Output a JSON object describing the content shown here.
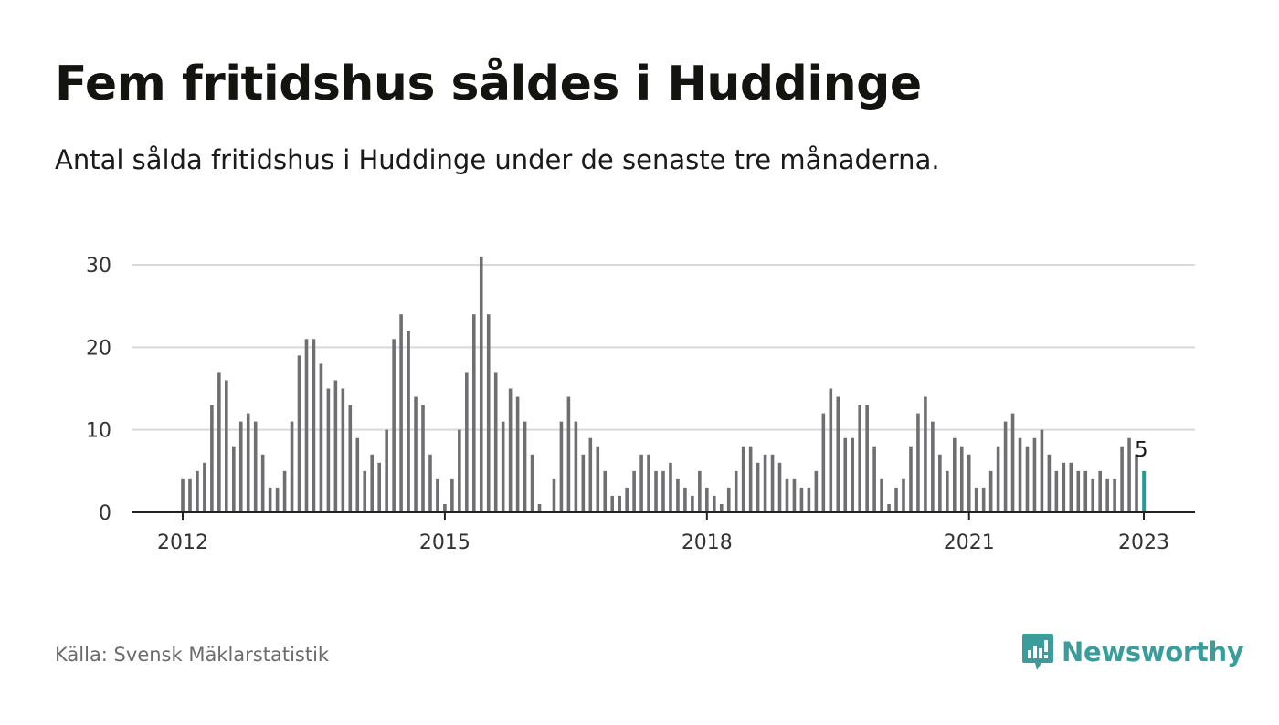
{
  "header": {
    "title": "Fem fritidshus såldes i Huddinge",
    "subtitle": "Antal sålda fritidshus i Huddinge under de senaste tre månaderna."
  },
  "footer": {
    "source": "Källa: Svensk Mäklarstatistik",
    "brand": "Newsworthy"
  },
  "colors": {
    "bar": "#6f6f72",
    "highlight": "#1a9e96",
    "grid": "#d9d9d9",
    "axis": "#222222",
    "brand": "#3a9d9b"
  },
  "chart_data": {
    "type": "bar",
    "title": "Fem fritidshus såldes i Huddinge",
    "subtitle": "Antal sålda fritidshus i Huddinge under de senaste tre månaderna.",
    "x_start": "2012-01",
    "x_end": "2023-01",
    "x_ticks": [
      {
        "label": "2012",
        "date": "2012-01"
      },
      {
        "label": "2015",
        "date": "2015-01"
      },
      {
        "label": "2018",
        "date": "2018-01"
      },
      {
        "label": "2021",
        "date": "2021-01"
      },
      {
        "label": "2023",
        "date": "2023-01"
      }
    ],
    "y_ticks": [
      0,
      10,
      20,
      30
    ],
    "ylim": [
      0,
      31
    ],
    "grid": true,
    "highlight_last": true,
    "last_value_label": "5",
    "values": [
      4,
      4,
      5,
      6,
      13,
      17,
      16,
      8,
      11,
      12,
      11,
      7,
      3,
      3,
      5,
      11,
      19,
      21,
      21,
      18,
      15,
      16,
      15,
      13,
      9,
      5,
      7,
      6,
      10,
      21,
      24,
      22,
      14,
      13,
      7,
      4,
      1,
      4,
      10,
      17,
      24,
      31,
      24,
      17,
      11,
      15,
      14,
      11,
      7,
      1,
      0,
      4,
      11,
      14,
      11,
      7,
      9,
      8,
      5,
      2,
      2,
      3,
      5,
      7,
      7,
      5,
      5,
      6,
      4,
      3,
      2,
      5,
      3,
      2,
      1,
      3,
      5,
      8,
      8,
      6,
      7,
      7,
      6,
      4,
      4,
      3,
      3,
      5,
      12,
      15,
      14,
      9,
      9,
      13,
      13,
      8,
      4,
      1,
      3,
      4,
      8,
      12,
      14,
      11,
      7,
      5,
      9,
      8,
      7,
      3,
      3,
      5,
      8,
      11,
      12,
      9,
      8,
      9,
      10,
      7,
      5,
      6,
      6,
      5,
      5,
      4,
      5,
      4,
      4,
      8,
      9,
      7,
      5
    ]
  }
}
